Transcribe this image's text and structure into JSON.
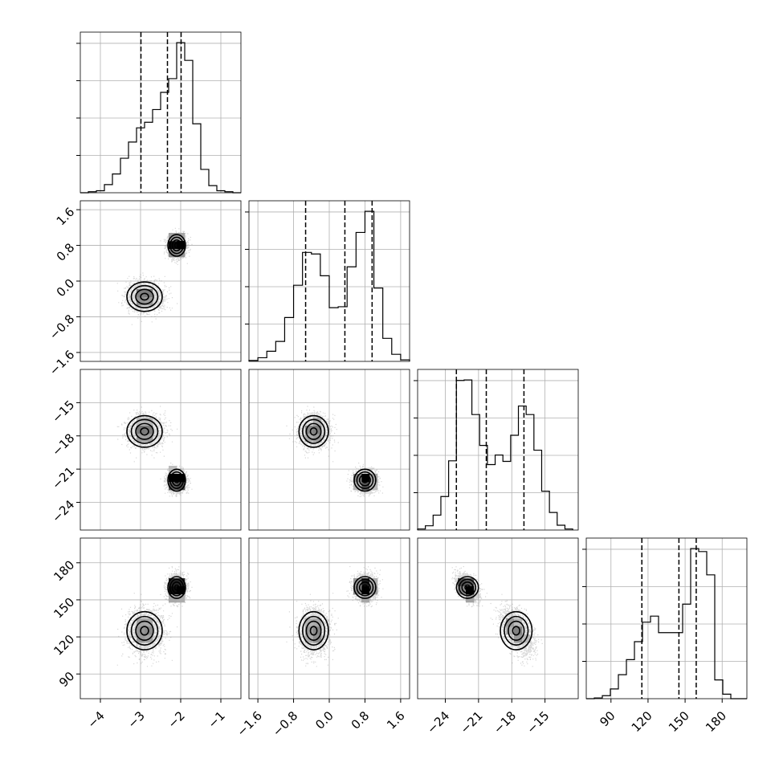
{
  "chart_data": {
    "type": "corner",
    "title": "",
    "grid": true,
    "parameters": [
      {
        "range": [
          -4.5,
          -0.5
        ],
        "ticks": [
          "−4",
          "−3",
          "−2",
          "−1"
        ],
        "tick_values": [
          -4,
          -3,
          -2,
          -1
        ],
        "quantiles": [
          -2.99,
          -2.33,
          -1.99
        ],
        "histogram": {
          "edges": [
            -4.5,
            -4.3,
            -4.1,
            -3.9,
            -3.7,
            -3.5,
            -3.3,
            -3.1,
            -2.9,
            -2.7,
            -2.5,
            -2.3,
            -2.1,
            -1.9,
            -1.7,
            -1.5,
            -1.3,
            -1.1,
            -0.9,
            -0.7,
            -0.5
          ],
          "counts": [
            0,
            2,
            4,
            16,
            37,
            68,
            100,
            128,
            139,
            164,
            198,
            225,
            296,
            261,
            136,
            46,
            14,
            4,
            2,
            0
          ]
        }
      },
      {
        "range": [
          -1.8,
          1.8
        ],
        "ticks": [
          "−1.6",
          "−0.8",
          "0.0",
          "0.8",
          "1.6"
        ],
        "tick_values": [
          -1.6,
          -0.8,
          0.0,
          0.8,
          1.6
        ],
        "quantiles": [
          -0.53,
          0.35,
          0.96
        ],
        "histogram": {
          "edges": [
            -1.8,
            -1.6,
            -1.4,
            -1.2,
            -1.0,
            -0.8,
            -0.6,
            -0.4,
            -0.2,
            0.0,
            0.2,
            0.4,
            0.6,
            0.8,
            1.0,
            1.2,
            1.4,
            1.6,
            1.8
          ],
          "counts": [
            3,
            12,
            33,
            65,
            143,
            248,
            355,
            350,
            279,
            175,
            178,
            308,
            420,
            489,
            239,
            75,
            23,
            5
          ]
        }
      },
      {
        "range": [
          -26.5,
          -12.0
        ],
        "ticks": [
          "−24",
          "−21",
          "−18",
          "−15"
        ],
        "tick_values": [
          -24,
          -21,
          -18,
          -15
        ],
        "quantiles": [
          -23.0,
          -20.3,
          -16.9
        ],
        "histogram": {
          "edges": [
            -26.5,
            -25.8,
            -25.1,
            -24.4,
            -23.7,
            -23.0,
            -22.3,
            -21.6,
            -20.9,
            -20.2,
            -19.5,
            -18.8,
            -18.1,
            -17.4,
            -16.7,
            -16.0,
            -15.3,
            -14.6,
            -13.9,
            -13.2,
            -12.5
          ],
          "counts": [
            2,
            8,
            28,
            63,
            130,
            281,
            282,
            217,
            159,
            123,
            141,
            129,
            178,
            233,
            217,
            150,
            73,
            33,
            9,
            2
          ]
        }
      },
      {
        "range": [
          70,
          200
        ],
        "ticks": [
          "90",
          "120",
          "150",
          "180"
        ],
        "tick_values": [
          90,
          120,
          150,
          180
        ],
        "quantiles": [
          115,
          145,
          159
        ],
        "histogram": {
          "edges": [
            70,
            76.5,
            83,
            89.5,
            96,
            102.5,
            109,
            115.5,
            122,
            128.5,
            135,
            141.5,
            148,
            154.5,
            161,
            167.5,
            174,
            180.5,
            187,
            193.5,
            200
          ],
          "counts": [
            0,
            1,
            4,
            13,
            32,
            52,
            76,
            102,
            110,
            88,
            88,
            88,
            126,
            200,
            196,
            165,
            25,
            6,
            0,
            0
          ]
        }
      }
    ],
    "clusters": [
      {
        "mean": [
          -2.9,
          -0.35,
          -17.6,
          125
        ],
        "std": [
          0.4,
          0.3,
          1.3,
          14
        ],
        "weight": 0.5
      },
      {
        "mean": [
          -2.1,
          0.8,
          -22.0,
          160
        ],
        "std": [
          0.2,
          0.22,
          0.9,
          8
        ],
        "weight": 0.5
      }
    ]
  }
}
